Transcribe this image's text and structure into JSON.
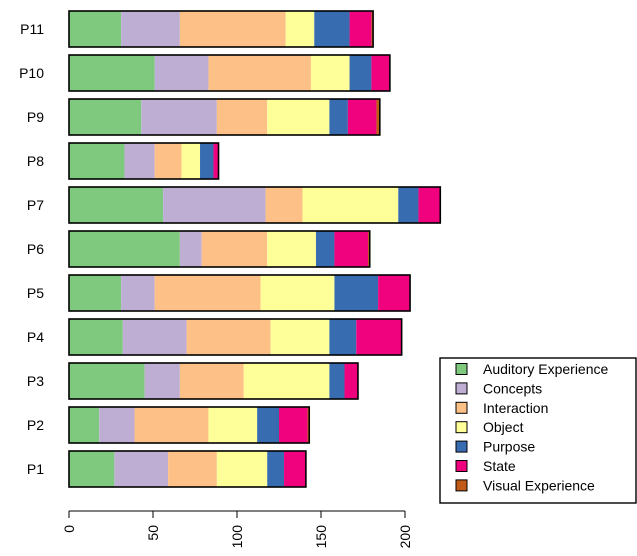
{
  "chart_data": {
    "type": "bar",
    "orientation": "horizontal",
    "stacked": true,
    "categories": [
      "P1",
      "P2",
      "P3",
      "P4",
      "P5",
      "P6",
      "P7",
      "P8",
      "P9",
      "P10",
      "P11"
    ],
    "series": [
      {
        "name": "Auditory Experience",
        "color": "#7fc97f",
        "values": [
          27,
          18,
          45,
          32,
          31,
          66,
          56,
          33,
          43,
          51,
          31
        ]
      },
      {
        "name": "Concepts",
        "color": "#beaed4",
        "values": [
          32,
          21,
          21,
          38,
          20,
          13,
          61,
          18,
          45,
          32,
          35
        ]
      },
      {
        "name": "Interaction",
        "color": "#fdc086",
        "values": [
          29,
          44,
          38,
          50,
          63,
          39,
          22,
          16,
          30,
          61,
          63
        ]
      },
      {
        "name": "Object",
        "color": "#ffff99",
        "values": [
          30,
          29,
          51,
          35,
          44,
          29,
          57,
          11,
          37,
          23,
          17
        ]
      },
      {
        "name": "Purpose",
        "color": "#386cb0",
        "values": [
          10,
          13,
          9,
          16,
          26,
          11,
          12,
          8,
          11,
          13,
          21
        ]
      },
      {
        "name": "State",
        "color": "#f0027f",
        "values": [
          13,
          17,
          8,
          27,
          19,
          20,
          13,
          3,
          17,
          11,
          13
        ]
      },
      {
        "name": "Visual Experience",
        "color": "#bf5b17",
        "values": [
          0,
          1,
          0,
          0,
          0,
          1,
          0,
          0,
          2,
          0,
          1
        ]
      }
    ],
    "xlim": [
      0,
      225
    ],
    "xticks": [
      0,
      50,
      100,
      150,
      200
    ],
    "xlabel": "",
    "ylabel": "",
    "title": "",
    "grid": false,
    "legend_position": "bottom-right"
  }
}
